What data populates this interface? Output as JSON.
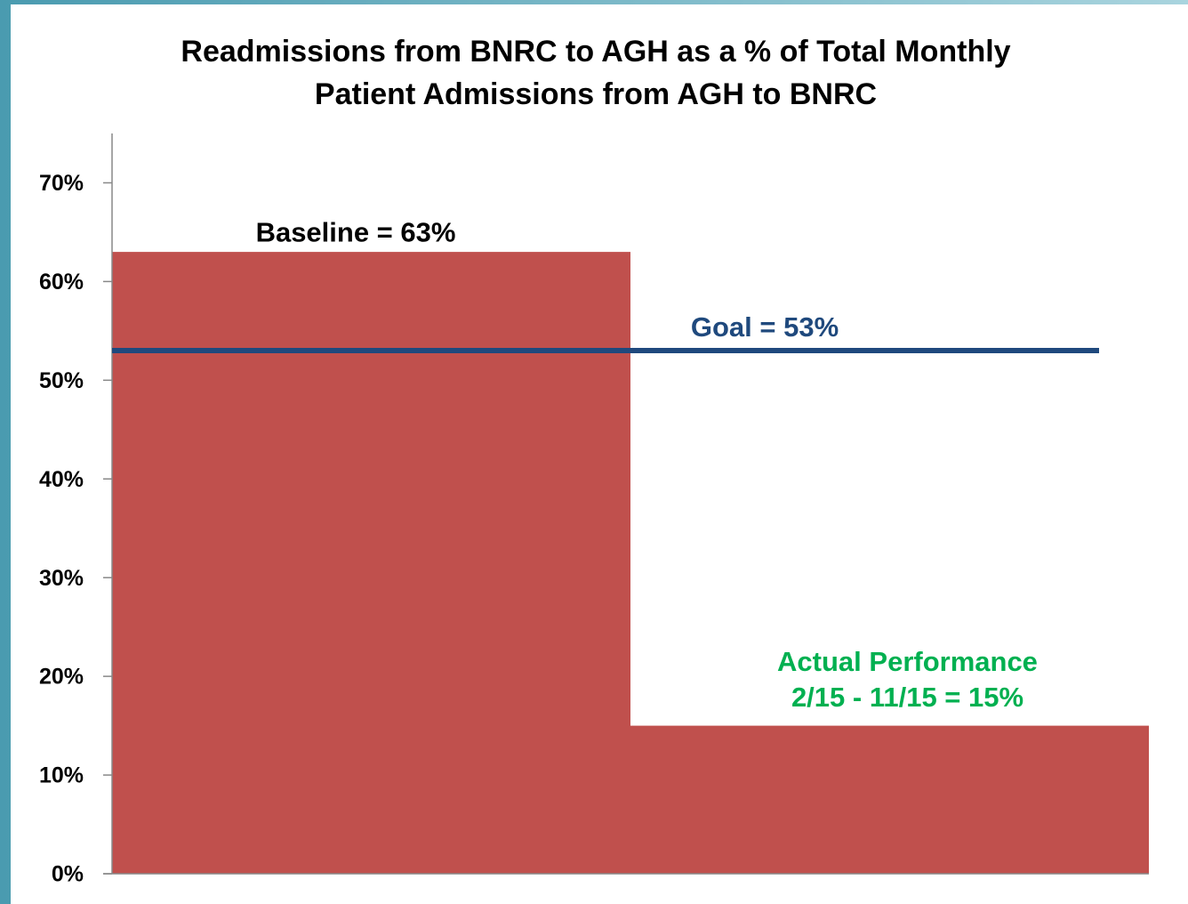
{
  "chart_data": {
    "type": "bar",
    "title": [
      "Readmissions from BNRC to AGH as a % of Total Monthly",
      "Patient Admissions from AGH to BNRC"
    ],
    "categories": [
      null,
      null
    ],
    "values": [
      63,
      15
    ],
    "value_labels": [
      [
        "Baseline = 63%"
      ],
      [
        "Actual Performance",
        "2/15 - 11/15 = 15%"
      ]
    ],
    "color": "#c0504d",
    "label_colors": [
      "#000000",
      "#00b050"
    ],
    "ylim": [
      0,
      75
    ],
    "yticks": [
      {
        "value": 0,
        "label": "0%"
      },
      {
        "value": 10,
        "label": "10%"
      },
      {
        "value": 20,
        "label": "20%"
      },
      {
        "value": 30,
        "label": "30%"
      },
      {
        "value": 40,
        "label": "40%"
      },
      {
        "value": 50,
        "label": "50%"
      },
      {
        "value": 60,
        "label": "60%"
      },
      {
        "value": 70,
        "label": "70%"
      }
    ],
    "grid": false,
    "reference_lines": [
      {
        "value": 53,
        "label": "Goal = 53%",
        "color": "#1f497d"
      }
    ]
  }
}
